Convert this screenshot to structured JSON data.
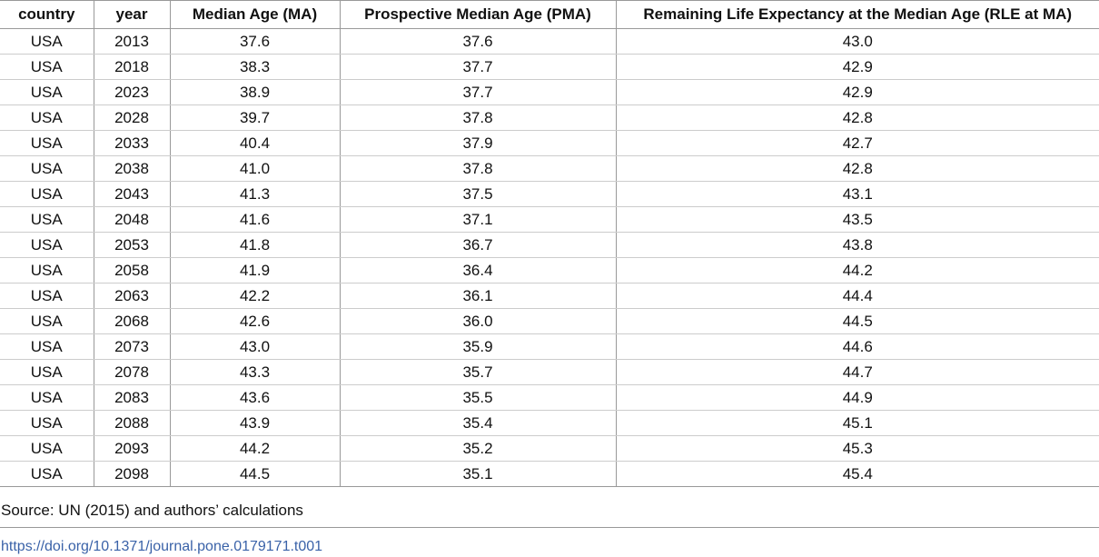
{
  "table": {
    "header": [
      "country",
      "year",
      "Median Age (MA)",
      "Prospective Median Age (PMA)",
      "Remaining Life Expectancy at the Median Age (RLE at MA)"
    ],
    "rows": [
      [
        "USA",
        "2013",
        "37.6",
        "37.6",
        "43.0"
      ],
      [
        "USA",
        "2018",
        "38.3",
        "37.7",
        "42.9"
      ],
      [
        "USA",
        "2023",
        "38.9",
        "37.7",
        "42.9"
      ],
      [
        "USA",
        "2028",
        "39.7",
        "37.8",
        "42.8"
      ],
      [
        "USA",
        "2033",
        "40.4",
        "37.9",
        "42.7"
      ],
      [
        "USA",
        "2038",
        "41.0",
        "37.8",
        "42.8"
      ],
      [
        "USA",
        "2043",
        "41.3",
        "37.5",
        "43.1"
      ],
      [
        "USA",
        "2048",
        "41.6",
        "37.1",
        "43.5"
      ],
      [
        "USA",
        "2053",
        "41.8",
        "36.7",
        "43.8"
      ],
      [
        "USA",
        "2058",
        "41.9",
        "36.4",
        "44.2"
      ],
      [
        "USA",
        "2063",
        "42.2",
        "36.1",
        "44.4"
      ],
      [
        "USA",
        "2068",
        "42.6",
        "36.0",
        "44.5"
      ],
      [
        "USA",
        "2073",
        "43.0",
        "35.9",
        "44.6"
      ],
      [
        "USA",
        "2078",
        "43.3",
        "35.7",
        "44.7"
      ],
      [
        "USA",
        "2083",
        "43.6",
        "35.5",
        "44.9"
      ],
      [
        "USA",
        "2088",
        "43.9",
        "35.4",
        "45.1"
      ],
      [
        "USA",
        "2093",
        "44.2",
        "35.2",
        "45.3"
      ],
      [
        "USA",
        "2098",
        "44.5",
        "35.1",
        "45.4"
      ]
    ]
  },
  "footer": {
    "source": "Source: UN (2015) and authors’ calculations",
    "doi": "https://doi.org/10.1371/journal.pone.0179171.t001"
  }
}
